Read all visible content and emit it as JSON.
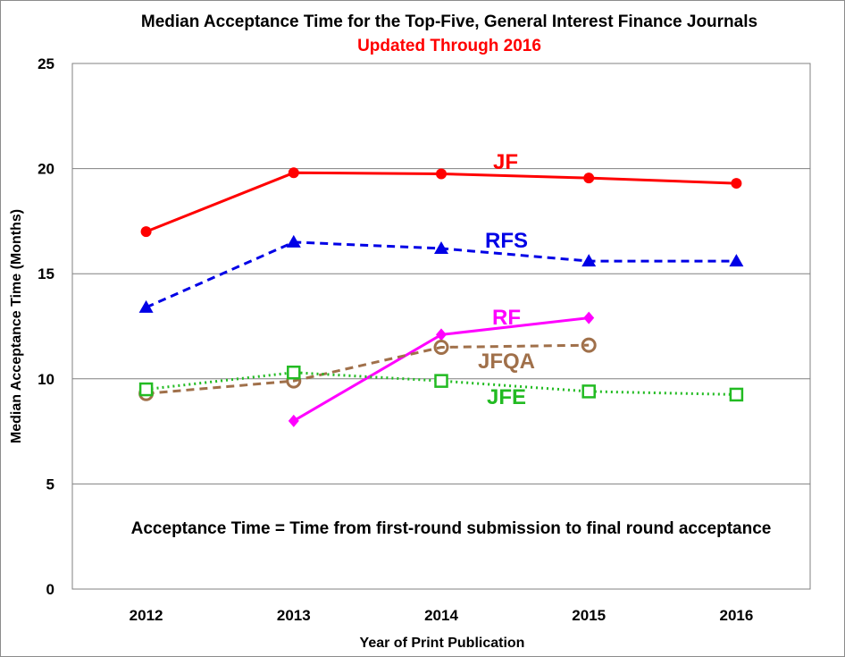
{
  "chart_data": {
    "type": "line",
    "title": "Median Acceptance Time for the Top-Five, General Interest Finance Journals",
    "subtitle": "Updated Through 2016",
    "xlabel": "Year of Print Publication",
    "ylabel": "Median Acceptance Time (Months)",
    "ylim": [
      0,
      25
    ],
    "yticks": [
      "0",
      "5",
      "10",
      "15",
      "20",
      "25"
    ],
    "categories": [
      "2012",
      "2013",
      "2014",
      "2015",
      "2016"
    ],
    "grid": true,
    "annotation": "Acceptance Time = Time from first-round submission to final round acceptance",
    "series": [
      {
        "name": "JF",
        "color": "#ff0000",
        "line": "solid",
        "marker": "circle",
        "values": [
          17.0,
          19.8,
          19.75,
          19.55,
          19.3
        ]
      },
      {
        "name": "RFS",
        "color": "#0000e6",
        "line": "dashed",
        "marker": "triangle",
        "values": [
          13.4,
          16.5,
          16.2,
          15.6,
          15.6
        ]
      },
      {
        "name": "RF",
        "color": "#ff00ff",
        "line": "solid",
        "marker": "diamond",
        "values": [
          null,
          8.0,
          12.1,
          12.9,
          null
        ]
      },
      {
        "name": "JFQA",
        "color": "#a0704a",
        "line": "dashed",
        "marker": "open-circle",
        "values": [
          9.3,
          9.9,
          11.5,
          11.6,
          null
        ]
      },
      {
        "name": "JFE",
        "color": "#22bb22",
        "line": "dotted",
        "marker": "open-square",
        "values": [
          9.5,
          10.3,
          9.9,
          9.4,
          9.25
        ]
      }
    ]
  }
}
